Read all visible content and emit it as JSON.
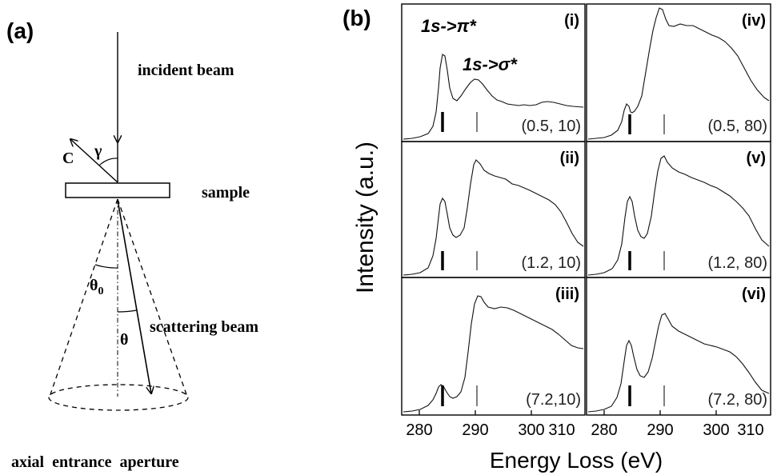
{
  "panel_a": {
    "label": "(a)",
    "incident_beam": "incident beam",
    "sample": "sample",
    "scattering_beam": "scattering beam",
    "aperture": "axial  entrance  aperture",
    "c_axis": "C",
    "gamma": "γ",
    "theta0": "θ",
    "theta0_sub": "0",
    "theta": "θ"
  },
  "panel_b": {
    "label": "(b)",
    "ylabel": "Intensity (a.u.)",
    "xlabel": "Energy Loss (eV)",
    "peak_pi": "1s->π*",
    "peak_sigma": "1s->σ*",
    "x_ticks": [
      "280",
      "290",
      "300",
      "310"
    ],
    "cells": [
      {
        "roman": "(i)",
        "condition": "(0.5, 10)"
      },
      {
        "roman": "(iv)",
        "condition": "(0.5, 80)"
      },
      {
        "roman": "(ii)",
        "condition": "(1.2, 10)"
      },
      {
        "roman": "(v)",
        "condition": "(1.2, 80)"
      },
      {
        "roman": "(iii)",
        "condition": "(7.2,10)"
      },
      {
        "roman": "(vi)",
        "condition": "(7.2, 80)"
      }
    ]
  }
}
